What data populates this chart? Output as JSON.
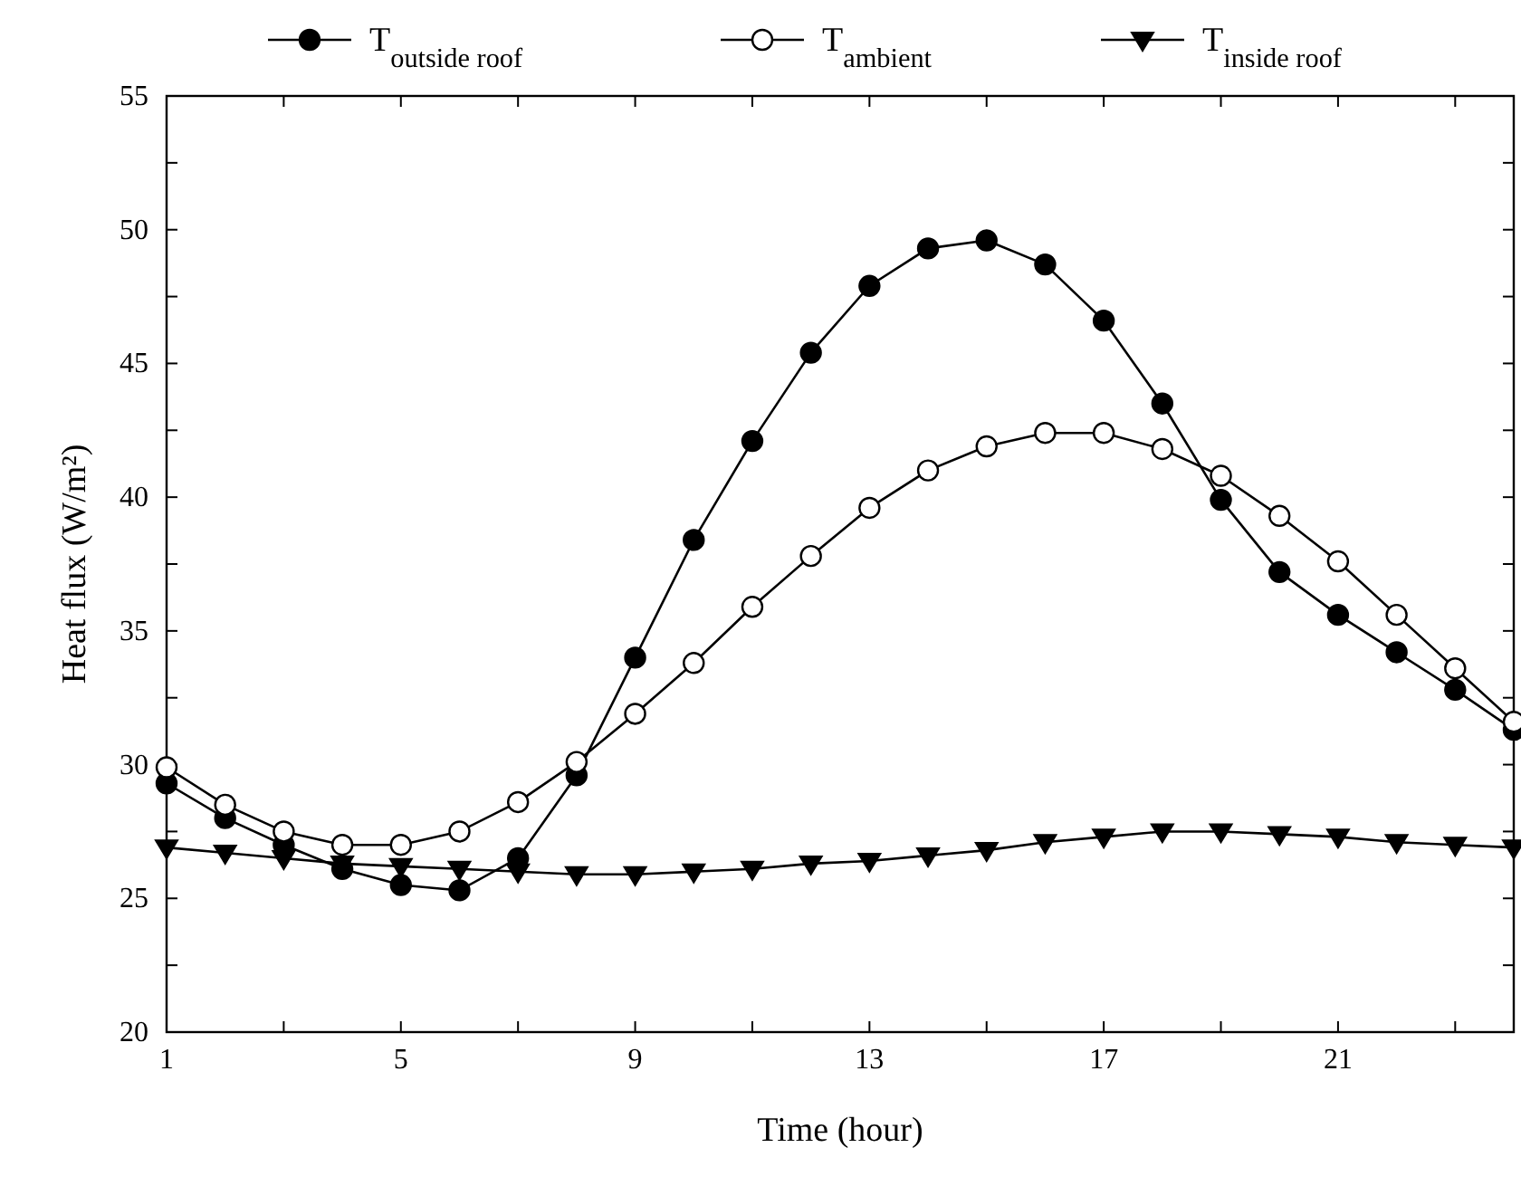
{
  "chart_data": {
    "type": "line",
    "xlabel": "Time (hour)",
    "ylabel": "Heat flux (W/m²)",
    "x": [
      1,
      2,
      3,
      4,
      5,
      6,
      7,
      8,
      9,
      10,
      11,
      12,
      13,
      14,
      15,
      16,
      17,
      18,
      19,
      20,
      21,
      22,
      23,
      24
    ],
    "xlim": [
      1,
      24
    ],
    "xticks": [
      1,
      {
        "value": 3,
        "label": null
      },
      5,
      {
        "value": 7,
        "label": null
      },
      9,
      {
        "value": 11,
        "label": null
      },
      13,
      {
        "value": 15,
        "label": null
      },
      17,
      {
        "value": 19,
        "label": null
      },
      21,
      {
        "value": 23,
        "label": null
      }
    ],
    "ylim": [
      20,
      55
    ],
    "yticks": [
      20,
      {
        "value": 22.5,
        "label": null
      },
      25,
      {
        "value": 27.5,
        "label": null
      },
      30,
      {
        "value": 32.5,
        "label": null
      },
      35,
      {
        "value": 37.5,
        "label": null
      },
      40,
      {
        "value": 42.5,
        "label": null
      },
      45,
      {
        "value": 47.5,
        "label": null
      },
      50,
      {
        "value": 52.5,
        "label": null
      },
      55
    ],
    "grid": false,
    "legend": "top",
    "line_style": "solid",
    "series": [
      {
        "name": "T$_{outside roof}$",
        "color": "#000000",
        "marker": "circle",
        "values": [
          29.3,
          28.0,
          27.0,
          26.1,
          25.5,
          25.3,
          26.5,
          29.6,
          34.0,
          38.4,
          42.1,
          45.4,
          47.9,
          49.3,
          49.6,
          48.7,
          46.6,
          43.5,
          39.9,
          37.2,
          35.6,
          34.2,
          32.8,
          31.3
        ]
      },
      {
        "name": "T$_{ambient}$",
        "color": "#000000",
        "marker": "circle",
        "values": [
          29.9,
          28.5,
          27.5,
          27.0,
          27.0,
          27.5,
          28.6,
          30.1,
          31.9,
          33.8,
          35.9,
          37.8,
          39.6,
          41.0,
          41.9,
          42.4,
          42.4,
          41.8,
          40.8,
          39.3,
          37.6,
          35.6,
          33.6,
          31.6
        ]
      },
      {
        "name": "T$_{inside roof}$",
        "color": "#000000",
        "marker": "triangle",
        "values": [
          26.9,
          26.7,
          26.5,
          26.3,
          26.2,
          26.1,
          26.0,
          25.9,
          25.9,
          26.0,
          26.1,
          26.3,
          26.4,
          26.6,
          26.8,
          27.1,
          27.3,
          27.5,
          27.5,
          27.4,
          27.3,
          27.1,
          27.0,
          26.9
        ]
      }
    ]
  }
}
